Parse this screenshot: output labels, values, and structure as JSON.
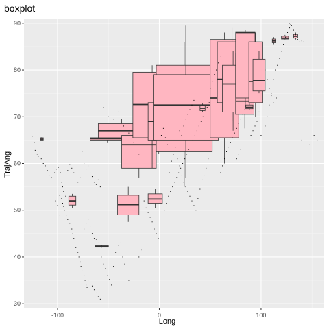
{
  "chart_data": {
    "type": "boxplot",
    "title": "boxplot",
    "xlabel": "Long",
    "ylabel": "TrajAng",
    "xlim": [
      -133,
      162
    ],
    "ylim": [
      29,
      91
    ],
    "x_ticks": [
      -100,
      0,
      100
    ],
    "x_tick_labels": [
      "-100",
      "0",
      "100"
    ],
    "y_ticks": [
      30,
      40,
      50,
      60,
      70,
      80,
      90
    ],
    "y_tick_labels": [
      "30",
      "40",
      "50",
      "60",
      "70",
      "80",
      "90"
    ],
    "grid": true,
    "colors": {
      "panel": "#ebebeb",
      "grid_major": "#ffffff",
      "grid_minor": "#f5f5f5",
      "box_fill": "#ffb6c1",
      "box_line": "#333333",
      "point": "#000000"
    },
    "boxes": [
      {
        "xmin": -117,
        "xmax": -114,
        "lower": 65.0,
        "q1": 65.0,
        "median": 65.2,
        "q3": 65.5,
        "upper": 65.6
      },
      {
        "xmin": -89,
        "xmax": -82,
        "lower": 50.5,
        "q1": 51.1,
        "median": 52.0,
        "q3": 53.0,
        "upper": 53.5
      },
      {
        "xmin": -63,
        "xmax": -50,
        "lower": 42.0,
        "q1": 42.1,
        "median": 42.3,
        "q3": 42.4,
        "upper": 42.5
      },
      {
        "xmin": -68,
        "xmax": -34,
        "lower": 64.5,
        "q1": 65.0,
        "median": 65.3,
        "q3": 65.5,
        "upper": 65.8
      },
      {
        "xmin": -60,
        "xmax": -14,
        "lower": 65.0,
        "q1": 65.5,
        "median": 67.0,
        "q3": 68.5,
        "upper": 69.5
      },
      {
        "xmin": -41,
        "xmax": -20,
        "lower": 47.5,
        "q1": 49.0,
        "median": 51.2,
        "q3": 53.2,
        "upper": 55.0
      },
      {
        "xmin": -37,
        "xmax": -3,
        "lower": 57.0,
        "q1": 59.0,
        "median": 64.0,
        "q3": 66.0,
        "upper": 68.0
      },
      {
        "xmin": -26,
        "xmax": 12,
        "lower": 59.0,
        "q1": 65.5,
        "median": 72.6,
        "q3": 79.5,
        "upper": 81.0
      },
      {
        "xmin": -11,
        "xmax": 3,
        "lower": 50.5,
        "q1": 51.5,
        "median": 52.4,
        "q3": 53.5,
        "upper": 54.5
      },
      {
        "xmin": -11,
        "xmax": 10,
        "lower": 62.0,
        "q1": 65.0,
        "median": 69.0,
        "q3": 73.0,
        "upper": 79.0
      },
      {
        "xmin": -3,
        "xmax": 52,
        "lower": 55.0,
        "q1": 62.5,
        "median": 68.0,
        "q3": 81.0,
        "upper": 86.0
      },
      {
        "xmin": -6,
        "xmax": 58,
        "lower": 57.0,
        "q1": 65.0,
        "median": 72.5,
        "q3": 79.0,
        "upper": 89.5
      },
      {
        "xmin": 40,
        "xmax": 45,
        "lower": 71.0,
        "q1": 71.3,
        "median": 71.8,
        "q3": 72.3,
        "upper": 72.8
      },
      {
        "xmin": 54,
        "xmax": 58,
        "lower": 73.5,
        "q1": 73.8,
        "median": 74.3,
        "q3": 74.8,
        "upper": 75.2
      },
      {
        "xmin": 50,
        "xmax": 78,
        "lower": 60.0,
        "q1": 65.5,
        "median": 74.0,
        "q3": 86.5,
        "upper": 88.0
      },
      {
        "xmin": 57,
        "xmax": 86,
        "lower": 69.0,
        "q1": 73.0,
        "median": 78.0,
        "q3": 86.0,
        "upper": 89.0
      },
      {
        "xmin": 62,
        "xmax": 83,
        "lower": 67.0,
        "q1": 71.0,
        "median": 77.0,
        "q3": 81.0,
        "upper": 84.0
      },
      {
        "xmin": 75,
        "xmax": 93,
        "lower": 67.5,
        "q1": 70.5,
        "median": 73.3,
        "q3": 83.5,
        "upper": 87.5
      },
      {
        "xmin": 85,
        "xmax": 92,
        "lower": 71.5,
        "q1": 71.7,
        "median": 72.0,
        "q3": 72.5,
        "upper": 73.0
      },
      {
        "xmin": 75,
        "xmax": 94,
        "lower": 72.0,
        "q1": 74.0,
        "median": 88.0,
        "q3": 88.2,
        "upper": 88.5
      },
      {
        "xmin": 88,
        "xmax": 101,
        "lower": 70.0,
        "q1": 73.0,
        "median": 77.5,
        "q3": 86.0,
        "upper": 88.0
      },
      {
        "xmin": 92,
        "xmax": 104,
        "lower": 75.0,
        "q1": 75.5,
        "median": 77.8,
        "q3": 82.3,
        "upper": 84.0
      },
      {
        "xmin": 111,
        "xmax": 114,
        "lower": 85.5,
        "q1": 85.8,
        "median": 86.2,
        "q3": 86.6,
        "upper": 87.0
      },
      {
        "xmin": 120,
        "xmax": 127,
        "lower": 86.5,
        "q1": 86.6,
        "median": 86.8,
        "q3": 87.2,
        "upper": 87.5
      },
      {
        "xmin": 132,
        "xmax": 136,
        "lower": 86.5,
        "q1": 86.8,
        "median": 87.2,
        "q3": 87.6,
        "upper": 88.0
      }
    ],
    "points": [
      [
        -125,
        65.8
      ],
      [
        -123,
        64.5
      ],
      [
        -122,
        62.8
      ],
      [
        -120,
        62.0
      ],
      [
        -119,
        61.5
      ],
      [
        -116,
        61.0
      ],
      [
        -114,
        60.0
      ],
      [
        -112,
        59.5
      ],
      [
        -110,
        58.5
      ],
      [
        -108,
        57.5
      ],
      [
        -106,
        57.0
      ],
      [
        -103,
        58.0
      ],
      [
        -101,
        58.8
      ],
      [
        -99,
        59.2
      ],
      [
        -97,
        58.0
      ],
      [
        -96,
        56.0
      ],
      [
        -95,
        55.0
      ],
      [
        -94,
        54.0
      ],
      [
        -92,
        53.0
      ],
      [
        -98,
        53.2
      ],
      [
        -96,
        52.5
      ],
      [
        -95,
        51.5
      ],
      [
        -94,
        50.8
      ],
      [
        -93,
        50.0
      ],
      [
        -91,
        49.0
      ],
      [
        -90,
        48.0
      ],
      [
        -88,
        47.2
      ],
      [
        -86,
        46.0
      ],
      [
        -85,
        45.0
      ],
      [
        -84,
        44.0
      ],
      [
        -83,
        43.0
      ],
      [
        -82,
        42.0
      ],
      [
        -80,
        41.0
      ],
      [
        -79,
        40.0
      ],
      [
        -78,
        39.0
      ],
      [
        -77,
        38.0
      ],
      [
        -76,
        37.0
      ],
      [
        -74,
        36.0
      ],
      [
        -73,
        35.0
      ],
      [
        -72,
        34.0
      ],
      [
        -71,
        33.5
      ],
      [
        -70,
        35.0
      ],
      [
        -68,
        34.2
      ],
      [
        -66,
        33.8
      ],
      [
        -64,
        33.0
      ],
      [
        -62,
        32.3
      ],
      [
        -60,
        31.5
      ],
      [
        -58,
        31.0
      ],
      [
        -74,
        46.0
      ],
      [
        -72,
        47.2
      ],
      [
        -70,
        48.0
      ],
      [
        -68,
        46.5
      ],
      [
        -66,
        45.0
      ],
      [
        -64,
        44.0
      ],
      [
        -62,
        43.8
      ],
      [
        -60,
        43.0
      ],
      [
        -57,
        40.0
      ],
      [
        -55,
        38.5
      ],
      [
        -53,
        37.5
      ],
      [
        -51,
        36.0
      ],
      [
        -49,
        35.2
      ],
      [
        -47,
        34.0
      ],
      [
        -45,
        38.0
      ],
      [
        -43,
        41.0
      ],
      [
        -40,
        42.5
      ],
      [
        -38,
        43.0
      ],
      [
        -36,
        40.0
      ],
      [
        -34,
        38.5
      ],
      [
        -30,
        35.0
      ],
      [
        -76,
        62.5
      ],
      [
        -74,
        60.0
      ],
      [
        -72,
        58.8
      ],
      [
        -70,
        59.5
      ],
      [
        -68,
        58.0
      ],
      [
        -66,
        57.2
      ],
      [
        -64,
        56.0
      ],
      [
        -62,
        55.5
      ],
      [
        -60,
        56.5
      ],
      [
        -58,
        55.0
      ],
      [
        -80,
        56.0
      ],
      [
        -78,
        57.0
      ],
      [
        -84,
        58.0
      ],
      [
        -86,
        59.0
      ],
      [
        -88,
        59.8
      ],
      [
        -90,
        58.5
      ],
      [
        -102,
        52.0
      ],
      [
        -100,
        51.0
      ],
      [
        -98,
        49.0
      ],
      [
        -15,
        52.0
      ],
      [
        -13,
        50.5
      ],
      [
        -11,
        49.5
      ],
      [
        -9,
        48.5
      ],
      [
        -7,
        47.5
      ],
      [
        -5,
        46.0
      ],
      [
        -3,
        45.0
      ],
      [
        -1,
        44.0
      ],
      [
        1,
        43.0
      ],
      [
        -18,
        41.5
      ],
      [
        -20,
        40.0
      ],
      [
        5,
        50.0
      ],
      [
        7,
        51.5
      ],
      [
        9,
        53.0
      ],
      [
        11,
        54.0
      ],
      [
        13,
        55.0
      ],
      [
        15,
        56.0
      ],
      [
        17,
        57.0
      ],
      [
        19,
        58.0
      ],
      [
        21,
        59.0
      ],
      [
        23,
        60.0
      ],
      [
        25,
        61.0
      ],
      [
        27,
        62.0
      ],
      [
        29,
        63.0
      ],
      [
        31,
        64.0
      ],
      [
        33,
        65.0
      ],
      [
        35,
        66.0
      ],
      [
        37,
        67.0
      ],
      [
        39,
        68.0
      ],
      [
        41,
        69.0
      ],
      [
        43,
        70.0
      ],
      [
        45,
        71.0
      ],
      [
        47,
        72.0
      ],
      [
        49,
        73.0
      ],
      [
        10,
        58.0
      ],
      [
        12,
        60.5
      ],
      [
        14,
        62.0
      ],
      [
        16,
        63.5
      ],
      [
        18,
        61.0
      ],
      [
        20,
        59.5
      ],
      [
        22,
        57.5
      ],
      [
        24,
        56.0
      ],
      [
        26,
        55.0
      ],
      [
        28,
        54.0
      ],
      [
        30,
        53.0
      ],
      [
        32,
        52.0
      ],
      [
        34,
        51.0
      ],
      [
        36,
        50.0
      ],
      [
        38,
        52.5
      ],
      [
        40,
        54.5
      ],
      [
        42,
        56.5
      ],
      [
        44,
        57.5
      ],
      [
        46,
        59.0
      ],
      [
        48,
        61.0
      ],
      [
        2,
        66.0
      ],
      [
        4,
        67.5
      ],
      [
        6,
        65.5
      ],
      [
        8,
        64.0
      ],
      [
        100,
        66.0
      ],
      [
        104,
        68.0
      ],
      [
        106,
        70.0
      ],
      [
        108,
        72.5
      ],
      [
        110,
        75.0
      ],
      [
        112,
        78.0
      ],
      [
        114,
        80.0
      ],
      [
        116,
        81.0
      ],
      [
        118,
        82.5
      ],
      [
        120,
        84.0
      ],
      [
        122,
        85.5
      ],
      [
        124,
        87.0
      ],
      [
        126,
        88.0
      ],
      [
        128,
        89.0
      ],
      [
        130,
        89.5
      ],
      [
        132,
        88.5
      ],
      [
        134,
        87.5
      ],
      [
        136,
        86.5
      ],
      [
        138,
        86.0
      ],
      [
        140,
        86.2
      ],
      [
        142,
        86.0
      ],
      [
        128,
        90.0
      ],
      [
        129,
        89.7
      ],
      [
        104,
        80.0
      ],
      [
        106,
        78.0
      ],
      [
        108,
        76.0
      ],
      [
        110,
        74.5
      ],
      [
        112,
        73.0
      ],
      [
        115,
        74.0
      ],
      [
        140,
        65.0
      ],
      [
        148,
        64.0
      ],
      [
        152,
        66.0
      ],
      [
        155,
        65.0
      ],
      [
        60,
        58.0
      ],
      [
        62,
        59.5
      ],
      [
        64,
        61.0
      ],
      [
        66,
        62.5
      ],
      [
        68,
        63.5
      ],
      [
        70,
        64.5
      ],
      [
        72,
        65.5
      ],
      [
        74,
        66.5
      ],
      [
        76,
        67.5
      ],
      [
        78,
        68.5
      ],
      [
        80,
        69.5
      ],
      [
        82,
        70.5
      ],
      [
        84,
        71.5
      ],
      [
        96,
        69.0
      ],
      [
        98,
        71.0
      ],
      [
        90,
        66.0
      ],
      [
        92,
        67.0
      ],
      [
        94,
        68.0
      ],
      [
        80,
        63.0
      ],
      [
        78,
        62.0
      ],
      [
        76,
        61.0
      ],
      [
        -55,
        72.0
      ],
      [
        -50,
        70.0
      ],
      [
        -45,
        69.5
      ],
      [
        -40,
        71.0
      ],
      [
        -35,
        68.0
      ],
      [
        -30,
        66.5
      ],
      [
        -25,
        64.5
      ],
      [
        -20,
        62.0
      ],
      [
        20,
        67.0
      ],
      [
        22,
        66.0
      ],
      [
        24,
        68.0
      ],
      [
        26,
        69.5
      ],
      [
        28,
        70.5
      ],
      [
        30,
        71.5
      ],
      [
        32,
        72.5
      ],
      [
        34,
        73.5
      ],
      [
        50,
        76.0
      ],
      [
        52,
        77.5
      ],
      [
        54,
        79.0
      ],
      [
        56,
        80.0
      ],
      [
        58,
        81.5
      ],
      [
        60,
        83.0
      ]
    ]
  }
}
